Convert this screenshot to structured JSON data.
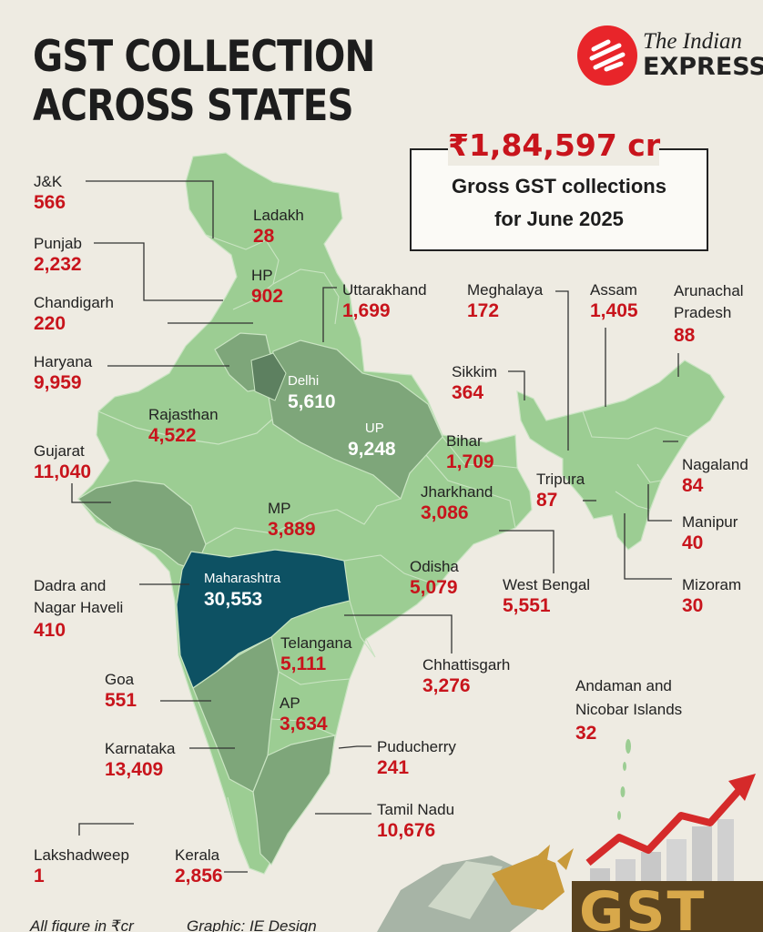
{
  "title_line1": "GST COLLECTION",
  "title_line2": "ACROSS STATES",
  "publisher_line1": "The Indian",
  "publisher_line2": "EXPRESS",
  "summary": {
    "total": "₹1,84,597 cr",
    "line1": "Gross GST collections",
    "line2": "for June 2025"
  },
  "colors": {
    "background": "#eeebe2",
    "light_green": "#9ccd93",
    "mid_green": "#7ea67a",
    "dark_green": "#5d8060",
    "maharashtra_teal": "#0d5163",
    "value_red": "#c8141c"
  },
  "states": [
    {
      "name": "J&K",
      "value": "566"
    },
    {
      "name": "Ladakh",
      "value": "28"
    },
    {
      "name": "Punjab",
      "value": "2,232"
    },
    {
      "name": "HP",
      "value": "902"
    },
    {
      "name": "Chandigarh",
      "value": "220"
    },
    {
      "name": "Uttarakhand",
      "value": "1,699"
    },
    {
      "name": "Haryana",
      "value": "9,959"
    },
    {
      "name": "Delhi",
      "value": "5,610"
    },
    {
      "name": "Rajasthan",
      "value": "4,522"
    },
    {
      "name": "UP",
      "value": "9,248"
    },
    {
      "name": "Gujarat",
      "value": "11,040"
    },
    {
      "name": "MP",
      "value": "3,889"
    },
    {
      "name": "Bihar",
      "value": "1,709"
    },
    {
      "name": "Jharkhand",
      "value": "3,086"
    },
    {
      "name": "Meghalaya",
      "value": "172"
    },
    {
      "name": "Assam",
      "value": "1,405"
    },
    {
      "name": "Arunachal Pradesh",
      "value": "88"
    },
    {
      "name": "Sikkim",
      "value": "364"
    },
    {
      "name": "Nagaland",
      "value": "84"
    },
    {
      "name": "Tripura",
      "value": "87"
    },
    {
      "name": "Manipur",
      "value": "40"
    },
    {
      "name": "Mizoram",
      "value": "30"
    },
    {
      "name": "Dadra and Nagar Haveli",
      "value": "410"
    },
    {
      "name": "Maharashtra",
      "value": "30,553"
    },
    {
      "name": "Odisha",
      "value": "5,079"
    },
    {
      "name": "West Bengal",
      "value": "5,551"
    },
    {
      "name": "Telangana",
      "value": "5,111"
    },
    {
      "name": "Chhattisgarh",
      "value": "3,276"
    },
    {
      "name": "Goa",
      "value": "551"
    },
    {
      "name": "AP",
      "value": "3,634"
    },
    {
      "name": "Andaman and Nicobar Islands",
      "value": "32"
    },
    {
      "name": "Karnataka",
      "value": "13,409"
    },
    {
      "name": "Puducherry",
      "value": "241"
    },
    {
      "name": "Tamil Nadu",
      "value": "10,676"
    },
    {
      "name": "Lakshadweep",
      "value": "1"
    },
    {
      "name": "Kerala",
      "value": "2,856"
    }
  ],
  "footer": {
    "units": "All figure in ₹cr",
    "credit": "Graphic: IE Design"
  },
  "decoration_text": "GST"
}
